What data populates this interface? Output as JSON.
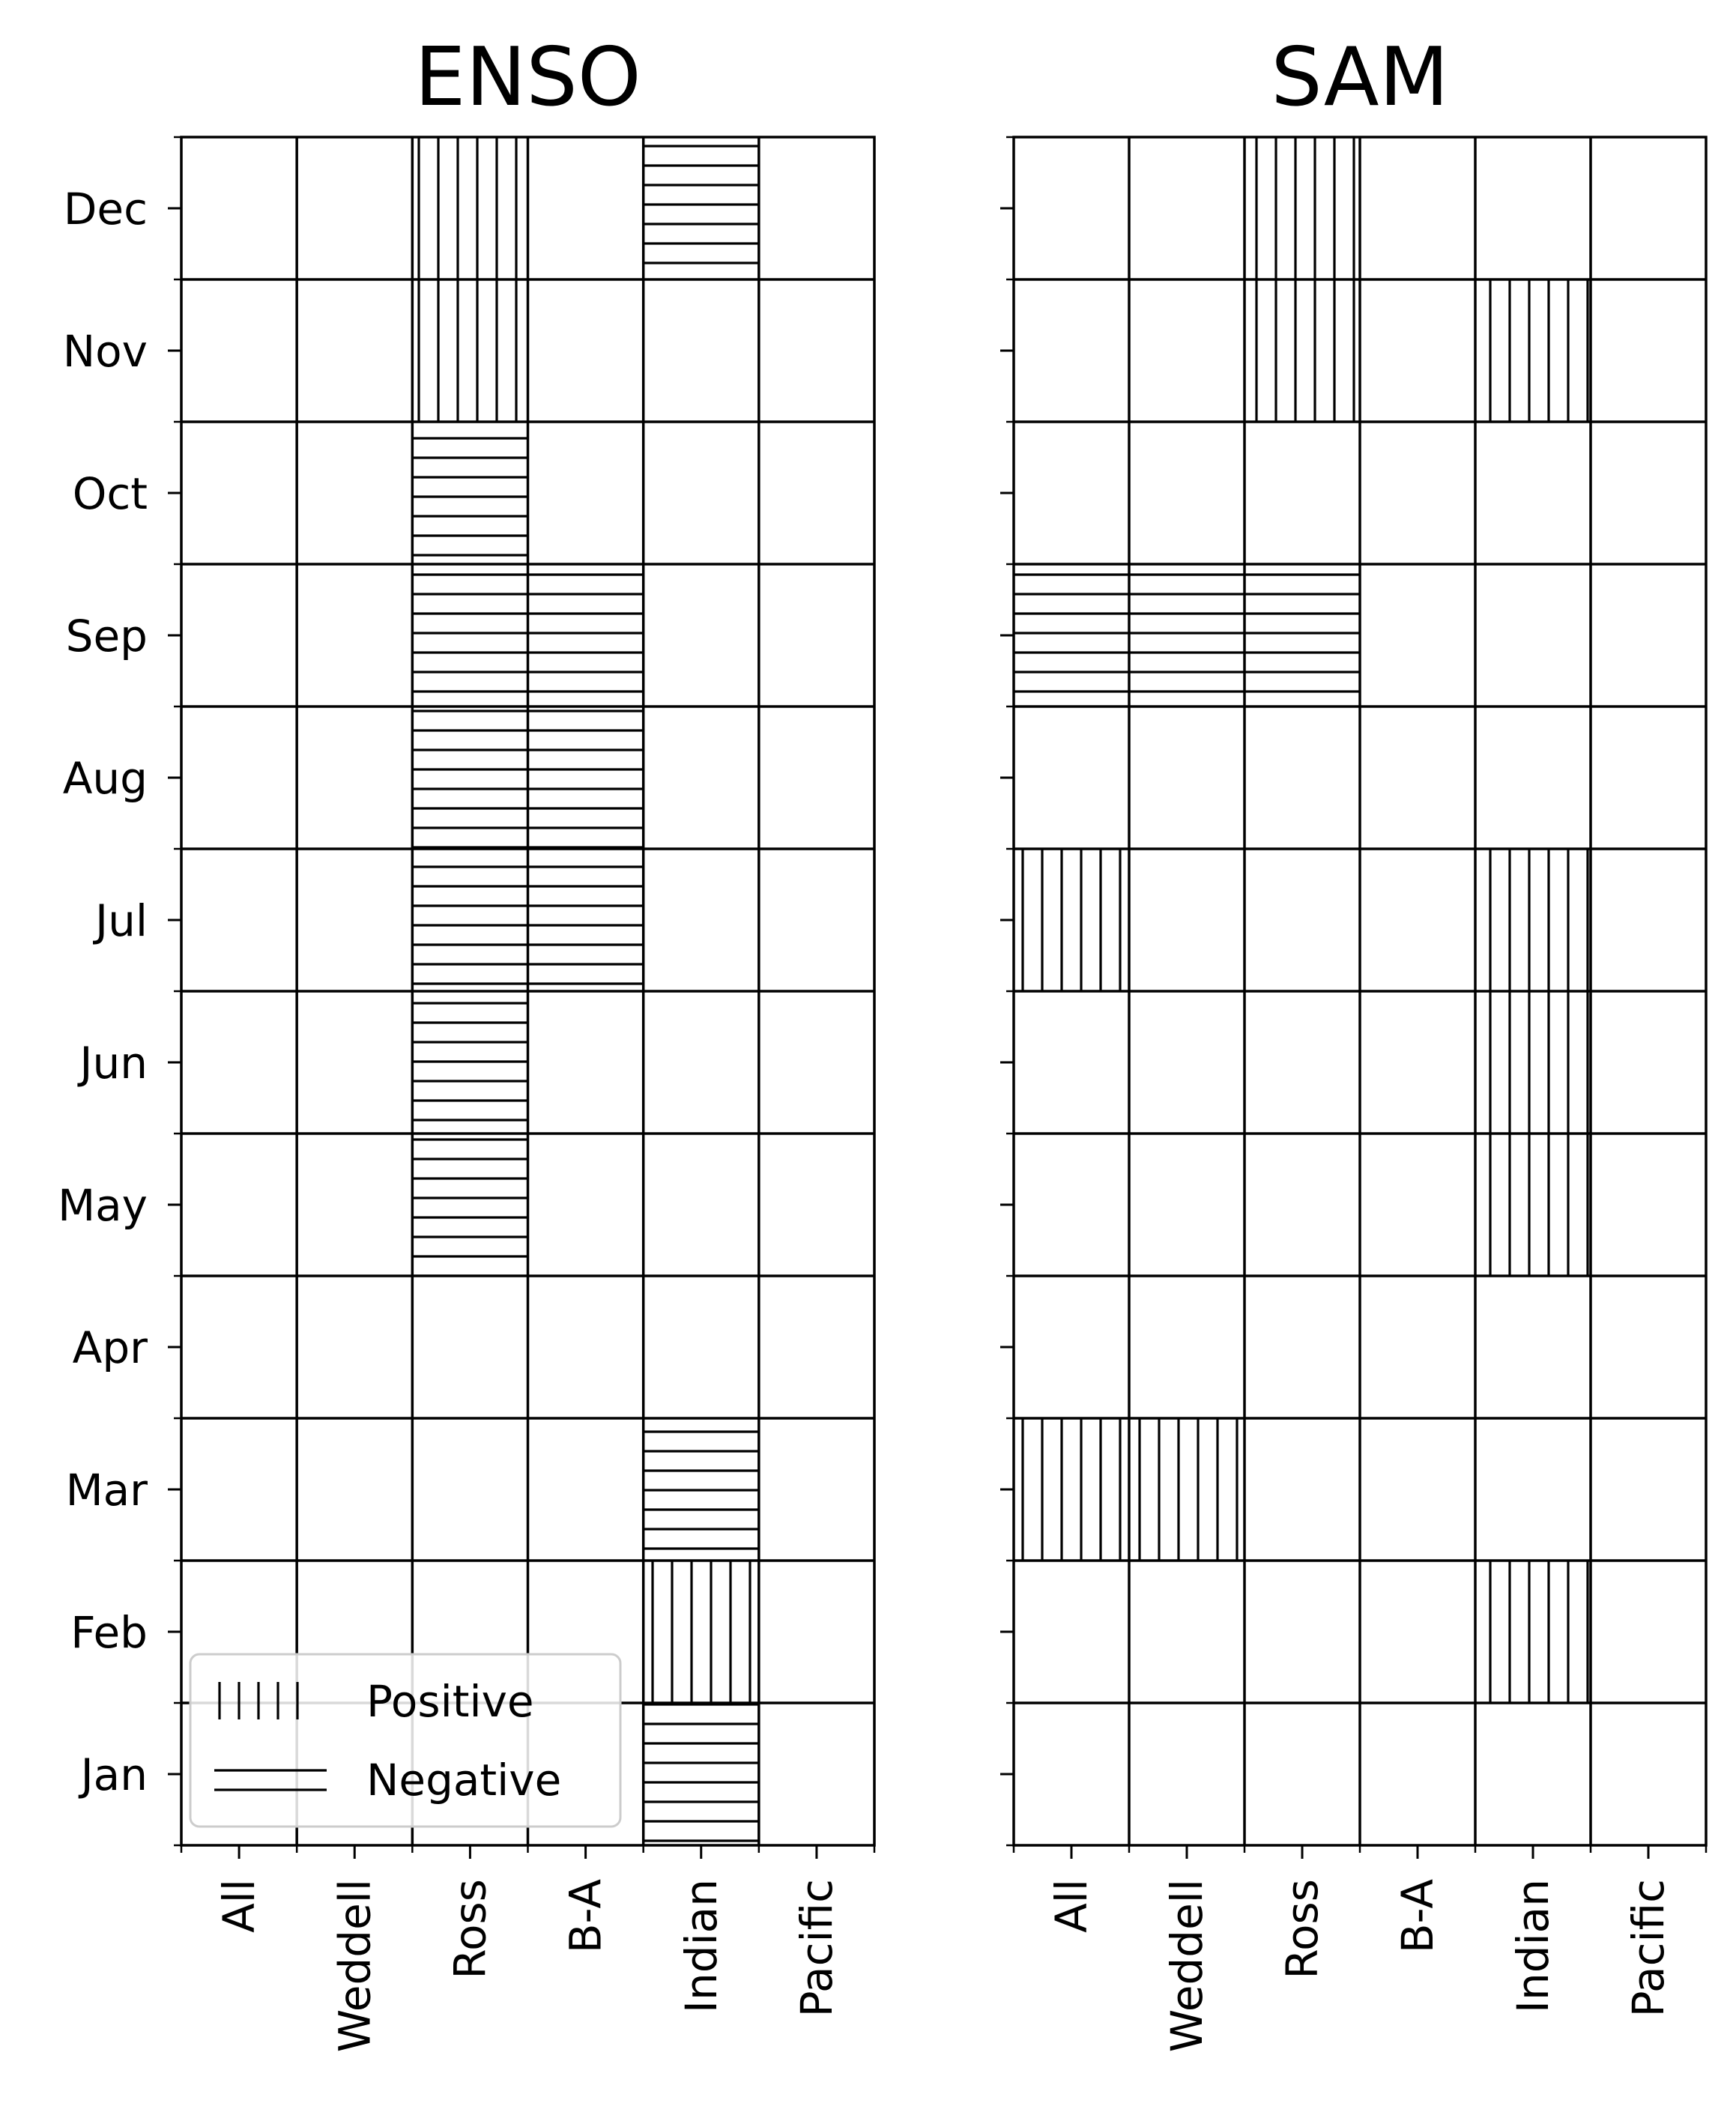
{
  "chart_data": [
    {
      "type": "heatmap",
      "title": "ENSO",
      "categories": [
        "All",
        "Weddell",
        "Ross",
        "B-A",
        "Indian",
        "Pacific"
      ],
      "months": [
        "Jan",
        "Feb",
        "Mar",
        "Apr",
        "May",
        "Jun",
        "Jul",
        "Aug",
        "Sep",
        "Oct",
        "Nov",
        "Dec"
      ],
      "cells": [
        {
          "month": "Dec",
          "category": "Ross",
          "sign": "Positive"
        },
        {
          "month": "Dec",
          "category": "Indian",
          "sign": "Negative"
        },
        {
          "month": "Nov",
          "category": "Ross",
          "sign": "Positive"
        },
        {
          "month": "Oct",
          "category": "Ross",
          "sign": "Negative"
        },
        {
          "month": "Sep",
          "category": "Ross",
          "sign": "Negative"
        },
        {
          "month": "Sep",
          "category": "B-A",
          "sign": "Negative"
        },
        {
          "month": "Aug",
          "category": "Ross",
          "sign": "Negative"
        },
        {
          "month": "Aug",
          "category": "B-A",
          "sign": "Negative"
        },
        {
          "month": "Jul",
          "category": "Ross",
          "sign": "Negative"
        },
        {
          "month": "Jul",
          "category": "B-A",
          "sign": "Negative"
        },
        {
          "month": "Jun",
          "category": "Ross",
          "sign": "Negative"
        },
        {
          "month": "May",
          "category": "Ross",
          "sign": "Negative"
        },
        {
          "month": "Mar",
          "category": "Indian",
          "sign": "Negative"
        },
        {
          "month": "Feb",
          "category": "Indian",
          "sign": "Positive"
        },
        {
          "month": "Jan",
          "category": "Indian",
          "sign": "Negative"
        }
      ],
      "show_month_labels": true,
      "legend": {
        "placement": "lower-left",
        "entries": [
          {
            "label": "Positive",
            "hatch": "vertical"
          },
          {
            "label": "Negative",
            "hatch": "horizontal"
          }
        ]
      }
    },
    {
      "type": "heatmap",
      "title": "SAM",
      "categories": [
        "All",
        "Weddell",
        "Ross",
        "B-A",
        "Indian",
        "Pacific"
      ],
      "months": [
        "Jan",
        "Feb",
        "Mar",
        "Apr",
        "May",
        "Jun",
        "Jul",
        "Aug",
        "Sep",
        "Oct",
        "Nov",
        "Dec"
      ],
      "cells": [
        {
          "month": "Dec",
          "category": "Ross",
          "sign": "Positive"
        },
        {
          "month": "Nov",
          "category": "Ross",
          "sign": "Positive"
        },
        {
          "month": "Nov",
          "category": "Indian",
          "sign": "Positive"
        },
        {
          "month": "Sep",
          "category": "All",
          "sign": "Negative"
        },
        {
          "month": "Sep",
          "category": "Weddell",
          "sign": "Negative"
        },
        {
          "month": "Sep",
          "category": "Ross",
          "sign": "Negative"
        },
        {
          "month": "Jul",
          "category": "All",
          "sign": "Positive"
        },
        {
          "month": "Jul",
          "category": "Indian",
          "sign": "Positive"
        },
        {
          "month": "Jun",
          "category": "Indian",
          "sign": "Positive"
        },
        {
          "month": "May",
          "category": "Indian",
          "sign": "Positive"
        },
        {
          "month": "Mar",
          "category": "All",
          "sign": "Positive"
        },
        {
          "month": "Mar",
          "category": "Weddell",
          "sign": "Positive"
        },
        {
          "month": "Feb",
          "category": "Indian",
          "sign": "Positive"
        }
      ],
      "show_month_labels": false
    }
  ]
}
